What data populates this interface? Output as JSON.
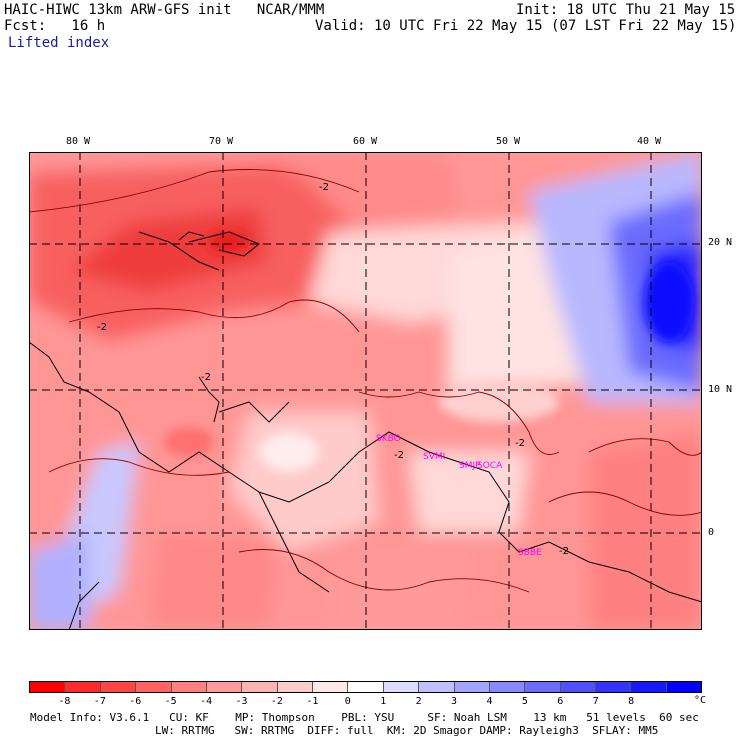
{
  "header": {
    "model_line": "HAIC-HIWC 13km ARW-GFS init   NCAR/MMM",
    "init_line": "Init: 18 UTC Thu 21 May 15",
    "fcst_line": "Fcst:   16 h",
    "valid_line": "Valid: 10 UTC Fri 22 May 15 (07 LST Fri 22 May 15)",
    "field_name": "Lifted index"
  },
  "map": {
    "lon_labels": [
      "80 W",
      "70 W",
      "60 W",
      "50 W",
      "40 W"
    ],
    "lat_labels": [
      "20 N",
      "10 N",
      "0"
    ],
    "contour_labels": [
      "-2",
      "-2",
      "-2",
      "-2",
      "-2",
      "-2"
    ],
    "stations": [
      "SKBO",
      "SVMI",
      "SMJP",
      "SOCA",
      "SBBE"
    ]
  },
  "colorbar": {
    "colors": [
      "#ff0000",
      "#ff2a2a",
      "#ff4646",
      "#ff6464",
      "#ff8080",
      "#ff9a9a",
      "#ffb2b2",
      "#ffcccc",
      "#ffe8e8",
      "#ffffff",
      "#dcdcff",
      "#c0c0ff",
      "#a4a4ff",
      "#8888ff",
      "#6c6cff",
      "#5050ff",
      "#3434ff",
      "#1818ff",
      "#0000ff"
    ],
    "labels": [
      "-8",
      "-7",
      "-6",
      "-5",
      "-4",
      "-3",
      "-2",
      "-1",
      "0",
      "1",
      "2",
      "3",
      "4",
      "5",
      "6",
      "7",
      "8"
    ],
    "unit": "°C"
  },
  "footer": {
    "line1": "Model Info: V3.6.1   CU: KF    MP: Thompson    PBL: YSU     SF: Noah LSM    13 km   51 levels  60 sec",
    "line2": "LW: RRTMG   SW: RRTMG  DIFF: full  KM: 2D Smagor DAMP: Rayleigh3  SFLAY: MM5"
  }
}
